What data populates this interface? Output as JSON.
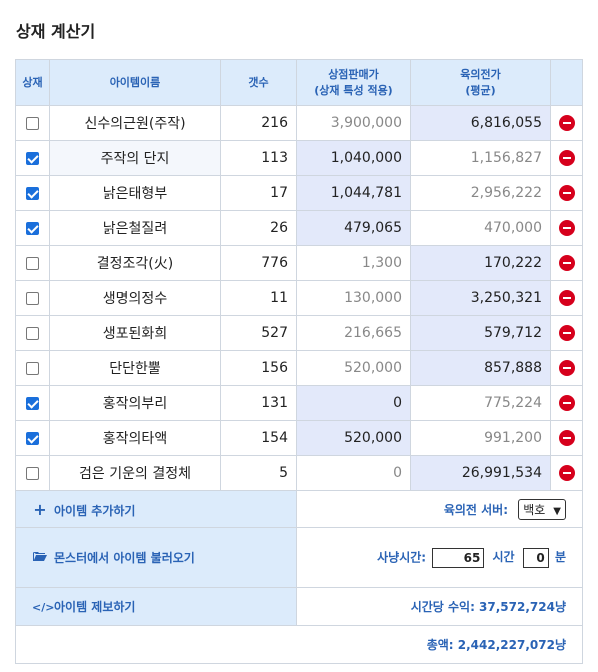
{
  "title": "상재 계산기",
  "headers": {
    "sangjae": "상재",
    "item_name": "아이템이름",
    "count": "갯수",
    "shop_price_1": "상점판매가",
    "shop_price_2": "(상재 특성 적용)",
    "mesos_price_1": "육의전가",
    "mesos_price_2": "(평균)"
  },
  "rows": [
    {
      "checked": false,
      "name": "신수의근원(주작)",
      "count": "216",
      "shop": "3,900,000",
      "mesos": "6,816,055"
    },
    {
      "checked": true,
      "name": "주작의 단지",
      "count": "113",
      "shop": "1,040,000",
      "mesos": "1,156,827"
    },
    {
      "checked": true,
      "name": "낡은태형부",
      "count": "17",
      "shop": "1,044,781",
      "mesos": "2,956,222"
    },
    {
      "checked": true,
      "name": "낡은철질려",
      "count": "26",
      "shop": "479,065",
      "mesos": "470,000"
    },
    {
      "checked": false,
      "name": "결정조각(火)",
      "count": "776",
      "shop": "1,300",
      "mesos": "170,222"
    },
    {
      "checked": false,
      "name": "생명의정수",
      "count": "11",
      "shop": "130,000",
      "mesos": "3,250,321"
    },
    {
      "checked": false,
      "name": "생포된화희",
      "count": "527",
      "shop": "216,665",
      "mesos": "579,712"
    },
    {
      "checked": false,
      "name": "단단한뿔",
      "count": "156",
      "shop": "520,000",
      "mesos": "857,888"
    },
    {
      "checked": true,
      "name": "홍작의부리",
      "count": "131",
      "shop": "0",
      "mesos": "775,224"
    },
    {
      "checked": true,
      "name": "홍작의타액",
      "count": "154",
      "shop": "520,000",
      "mesos": "991,200"
    },
    {
      "checked": false,
      "name": "검은 기운의 결정체",
      "count": "5",
      "shop": "0",
      "mesos": "26,991,534"
    }
  ],
  "footer": {
    "add_item": "아이템 추가하기",
    "server_label": "육의전 서버:",
    "server_value": "백호",
    "import_monster": "몬스터에서 아이템 불러오기",
    "hunt_time_label": "사냥시간:",
    "hunt_hours": "65",
    "hours_unit": "시간",
    "hunt_minutes": "0",
    "minutes_unit": "분",
    "report_item": "아이템 제보하기",
    "income_per_hour": "시간당 수익: 37,572,724냥",
    "total": "총액: 2,442,227,072냥"
  },
  "colors": {
    "accent": "#2a63b5",
    "header_bg": "#dcebfb",
    "highlight_bg": "#e3e9fa",
    "delete_red": "#d6001c",
    "checkbox_blue": "#1a6fdb"
  },
  "icons": {
    "add": "plus-icon",
    "import": "folder-open-icon",
    "report": "code-icon",
    "delete": "minus-circle-icon"
  }
}
